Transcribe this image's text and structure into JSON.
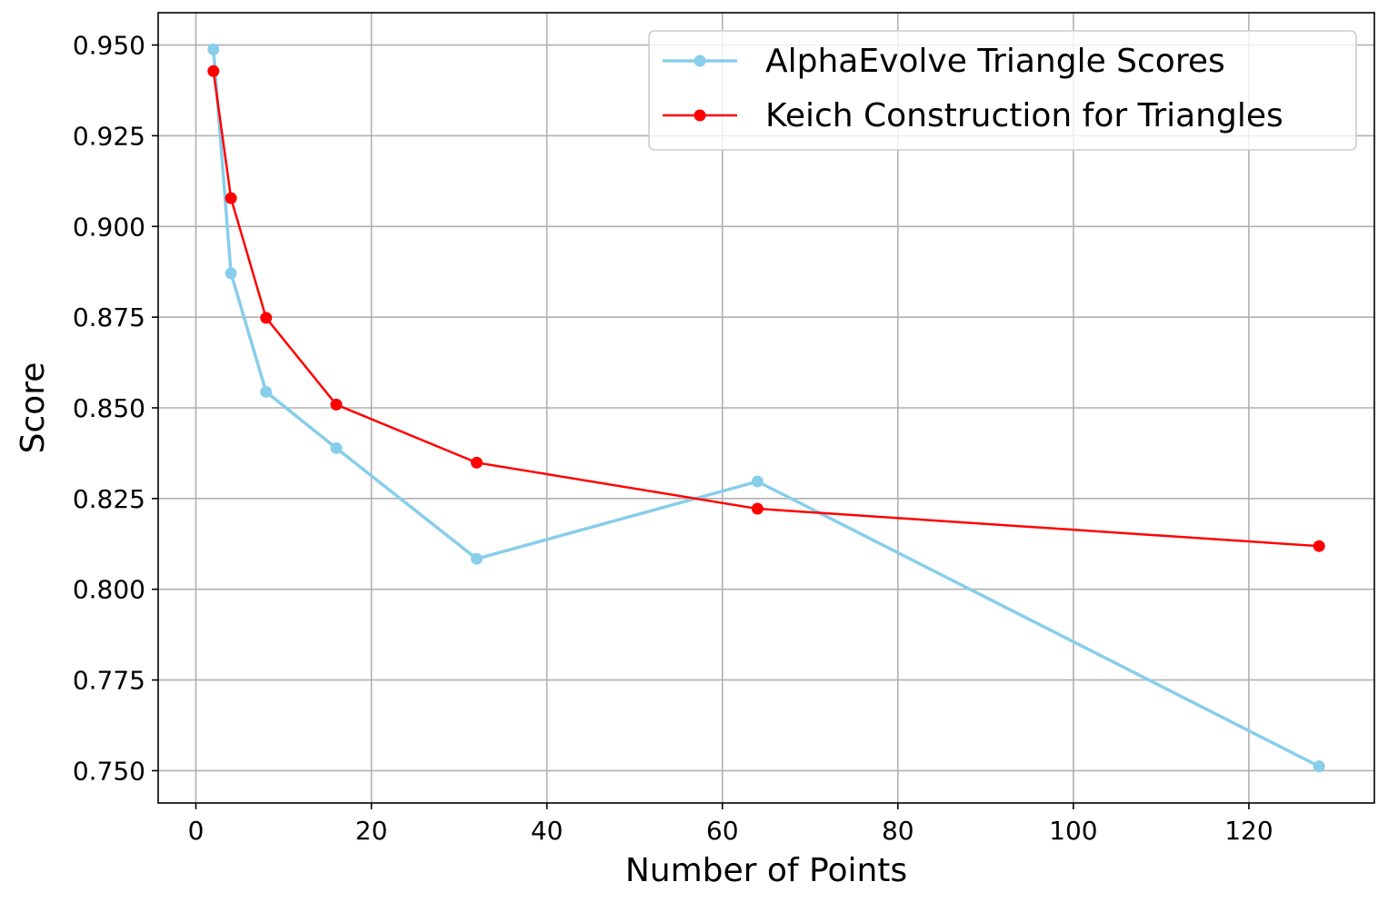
{
  "chart_data": {
    "type": "line",
    "xlabel": "Number of Points",
    "ylabel": "Score",
    "xlim": [
      -4.3,
      134.3
    ],
    "ylim": [
      0.7411,
      0.9589
    ],
    "xticks": [
      0,
      20,
      40,
      60,
      80,
      100,
      120
    ],
    "yticks": [
      {
        "value": 0.75,
        "label": "0.750"
      },
      0.775,
      {
        "value": 0.8,
        "label": "0.800"
      },
      0.825,
      {
        "value": 0.85,
        "label": "0.850"
      },
      0.875,
      {
        "value": 0.9,
        "label": "0.900"
      },
      0.925,
      {
        "value": 0.95,
        "label": "0.950"
      }
    ],
    "grid": true,
    "legend": "upper right",
    "x": [
      2,
      4,
      8,
      16,
      32,
      64,
      128
    ],
    "series": [
      {
        "name": "AlphaEvolve Triangle Scores",
        "color": "#87ceeb",
        "values": [
          0.9488,
          0.8871,
          0.8544,
          0.8389,
          0.8084,
          0.8297,
          0.7512
        ]
      },
      {
        "name": "Keich Construction for Triangles",
        "color": "#ff0000",
        "values": [
          0.9428,
          0.9078,
          0.8748,
          0.8509,
          0.8349,
          0.8222,
          0.8119
        ]
      }
    ]
  }
}
